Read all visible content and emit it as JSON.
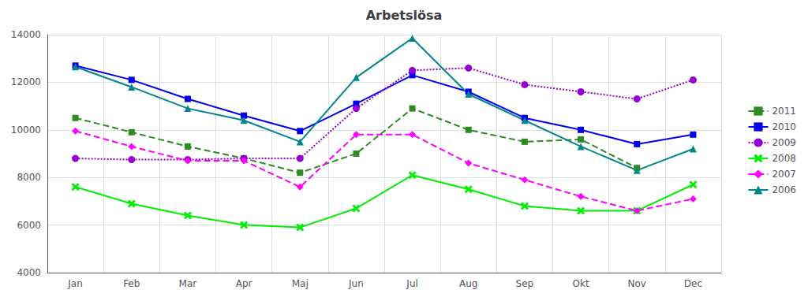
{
  "chart_data": {
    "type": "line",
    "title": "Arbetslösa",
    "categories": [
      "Jan",
      "Feb",
      "Mar",
      "Apr",
      "Maj",
      "Jun",
      "Jul",
      "Aug",
      "Sep",
      "Okt",
      "Nov",
      "Dec"
    ],
    "series": [
      {
        "name": "2011",
        "color": "#2E8B22",
        "line_style": "dashed",
        "marker": "square",
        "values": [
          10500,
          9900,
          9300,
          8800,
          8200,
          9000,
          10900,
          10000,
          9500,
          9600,
          8400,
          null
        ]
      },
      {
        "name": "2010",
        "color": "#0000EE",
        "line_style": "solid",
        "marker": "square",
        "values": [
          12700,
          12100,
          11300,
          10600,
          9950,
          11100,
          12300,
          11600,
          10500,
          10000,
          9400,
          9800
        ]
      },
      {
        "name": "2009",
        "color": "#9400D3",
        "line_style": "dotted",
        "marker": "circle",
        "values": [
          8800,
          8750,
          8750,
          8800,
          8800,
          10900,
          12500,
          12600,
          11900,
          11600,
          11300,
          12100
        ]
      },
      {
        "name": "2008",
        "color": "#00EE00",
        "line_style": "solid",
        "marker": "x",
        "values": [
          7600,
          6900,
          6400,
          6000,
          5900,
          6700,
          8100,
          7500,
          6800,
          6600,
          6600,
          7700
        ]
      },
      {
        "name": "2007",
        "color": "#FF00FF",
        "line_style": "dashed",
        "marker": "diamond",
        "values": [
          9950,
          9300,
          8700,
          8700,
          7600,
          9800,
          9800,
          8600,
          7900,
          7200,
          6600,
          7100
        ]
      },
      {
        "name": "2006",
        "color": "#00868B",
        "line_style": "solid",
        "marker": "triangle",
        "values": [
          12650,
          11800,
          10900,
          10400,
          9500,
          12200,
          13850,
          11500,
          10400,
          9300,
          8300,
          9200
        ]
      }
    ],
    "ylim": [
      4000,
      14000
    ],
    "yticks": [
      4000,
      6000,
      8000,
      10000,
      12000,
      14000
    ],
    "grid": true,
    "legend": "right"
  }
}
